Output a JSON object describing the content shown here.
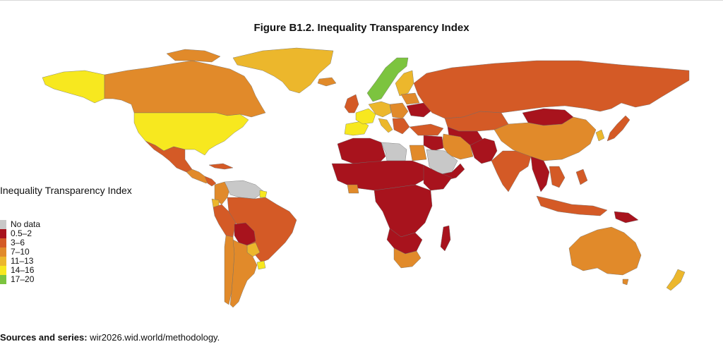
{
  "figure": {
    "title": "Figure B1.2. Inequality Transparency Index"
  },
  "legend": {
    "title": "Inequality Transparency Index",
    "items": [
      {
        "label": "No data",
        "color": "#c8c8c8"
      },
      {
        "label": "0.5–2",
        "color": "#a8131d"
      },
      {
        "label": "3–6",
        "color": "#d45a26"
      },
      {
        "label": "7–10",
        "color": "#e18a2a"
      },
      {
        "label": "11–13",
        "color": "#ecb72c"
      },
      {
        "label": "14–16",
        "color": "#f7e81f"
      },
      {
        "label": "17–20",
        "color": "#7cc43f"
      }
    ]
  },
  "sources": {
    "prefix": "Sources and series:",
    "text": " wir2026.wid.world/methodology."
  }
}
